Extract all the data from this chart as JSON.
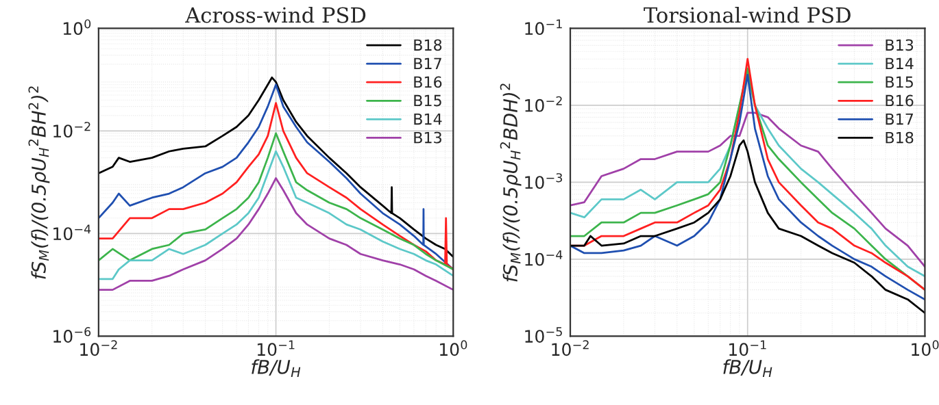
{
  "chart_data": [
    {
      "type": "line",
      "title": "Across-wind PSD",
      "xlabel": "fB/U$_{H}$",
      "ylabel": "fS$_{M}$(f)/(0.5ρU$_{H}$$^{2}$BH$^{2}$)$^{2}$",
      "log": "xy",
      "grid": true,
      "legend": "top right",
      "xlim": [
        0.01,
        1
      ],
      "ylim": [
        1e-06,
        1
      ],
      "xticks": [
        {
          "value": 0.01,
          "label": "10$^{−2}$"
        },
        {
          "value": 0.1,
          "label": "10$^{−1}$"
        },
        {
          "value": 1,
          "label": "10$^{0}$"
        }
      ],
      "yticks": [
        {
          "value": 1e-06,
          "label": "10$^{−6}$"
        },
        {
          "value": 0.0001,
          "label": "10$^{−4}$"
        },
        {
          "value": 0.01,
          "label": "10$^{−2}$"
        },
        {
          "value": 1,
          "label": "10$^{0}$"
        }
      ],
      "series": [
        {
          "name": "B18",
          "color": "#000000",
          "x": [
            0.01,
            0.012,
            0.013,
            0.015,
            0.02,
            0.025,
            0.03,
            0.04,
            0.05,
            0.06,
            0.07,
            0.08,
            0.09,
            0.095,
            0.1,
            0.11,
            0.13,
            0.15,
            0.2,
            0.25,
            0.3,
            0.4,
            0.448,
            0.45,
            0.452,
            0.5,
            0.6,
            0.7,
            0.8,
            0.9,
            1.0
          ],
          "values": [
            0.0015,
            0.002,
            0.003,
            0.0025,
            0.003,
            0.004,
            0.0045,
            0.005,
            0.008,
            0.012,
            0.02,
            0.04,
            0.08,
            0.11,
            0.09,
            0.04,
            0.015,
            0.008,
            0.003,
            0.0015,
            0.0008,
            0.00035,
            0.00025,
            0.0008,
            0.00025,
            0.0002,
            0.00012,
            8e-05,
            6e-05,
            5e-05,
            3.5e-05
          ]
        },
        {
          "name": "B17",
          "color": "#1f4fb0",
          "x": [
            0.01,
            0.012,
            0.013,
            0.015,
            0.02,
            0.025,
            0.03,
            0.04,
            0.05,
            0.06,
            0.07,
            0.08,
            0.09,
            0.1,
            0.11,
            0.13,
            0.15,
            0.2,
            0.25,
            0.3,
            0.4,
            0.5,
            0.6,
            0.678,
            0.68,
            0.682,
            0.8,
            1.0
          ],
          "values": [
            0.0002,
            0.0004,
            0.0006,
            0.00035,
            0.0005,
            0.0006,
            0.0008,
            0.0015,
            0.002,
            0.003,
            0.006,
            0.012,
            0.03,
            0.08,
            0.03,
            0.012,
            0.006,
            0.0025,
            0.0012,
            0.0006,
            0.00025,
            0.00015,
            9e-05,
            6e-05,
            0.0003,
            6e-05,
            4e-05,
            2e-05
          ]
        },
        {
          "name": "B16",
          "color": "#ff2020",
          "x": [
            0.01,
            0.012,
            0.015,
            0.02,
            0.025,
            0.03,
            0.04,
            0.05,
            0.06,
            0.07,
            0.08,
            0.09,
            0.1,
            0.11,
            0.13,
            0.15,
            0.2,
            0.25,
            0.3,
            0.4,
            0.5,
            0.6,
            0.7,
            0.8,
            0.9,
            0.91,
            0.92,
            1.0
          ],
          "values": [
            8e-05,
            8e-05,
            0.0002,
            0.0002,
            0.0003,
            0.0003,
            0.0004,
            0.0006,
            0.001,
            0.002,
            0.0035,
            0.008,
            0.035,
            0.01,
            0.003,
            0.0015,
            0.0008,
            0.0005,
            0.0003,
            0.00015,
            9e-05,
            6e-05,
            4.5e-05,
            3e-05,
            2.5e-05,
            0.0002,
            2.5e-05,
            2e-05
          ]
        },
        {
          "name": "B15",
          "color": "#3cb44b",
          "x": [
            0.01,
            0.012,
            0.015,
            0.02,
            0.025,
            0.03,
            0.04,
            0.05,
            0.06,
            0.07,
            0.08,
            0.09,
            0.1,
            0.11,
            0.13,
            0.15,
            0.2,
            0.25,
            0.3,
            0.4,
            0.5,
            0.6,
            0.7,
            0.8,
            1.0
          ],
          "values": [
            3e-05,
            5e-05,
            3e-05,
            5e-05,
            6e-05,
            0.0001,
            0.00012,
            0.0002,
            0.0003,
            0.0005,
            0.001,
            0.003,
            0.009,
            0.004,
            0.001,
            0.0007,
            0.0004,
            0.0003,
            0.0002,
            0.00012,
            8e-05,
            6e-05,
            4e-05,
            3e-05,
            2e-05
          ]
        },
        {
          "name": "B14",
          "color": "#5cc8c8",
          "x": [
            0.01,
            0.012,
            0.013,
            0.015,
            0.02,
            0.025,
            0.03,
            0.04,
            0.05,
            0.06,
            0.07,
            0.08,
            0.09,
            0.1,
            0.11,
            0.13,
            0.15,
            0.2,
            0.25,
            0.3,
            0.4,
            0.5,
            0.6,
            0.7,
            0.8,
            1.0
          ],
          "values": [
            1.3e-05,
            1.3e-05,
            2e-05,
            3e-05,
            3e-05,
            5e-05,
            4e-05,
            6e-05,
            0.0001,
            0.00015,
            0.00025,
            0.0005,
            0.0015,
            0.004,
            0.002,
            0.0005,
            0.0004,
            0.00025,
            0.00015,
            0.00012,
            7e-05,
            5e-05,
            4e-05,
            3e-05,
            2.5e-05,
            1.5e-05
          ]
        },
        {
          "name": "B13",
          "color": "#a040a8",
          "x": [
            0.01,
            0.012,
            0.015,
            0.02,
            0.025,
            0.03,
            0.04,
            0.05,
            0.06,
            0.07,
            0.08,
            0.09,
            0.1,
            0.11,
            0.13,
            0.15,
            0.2,
            0.25,
            0.3,
            0.4,
            0.5,
            0.6,
            0.7,
            0.8,
            1.0
          ],
          "values": [
            8e-06,
            8e-06,
            1.2e-05,
            1.2e-05,
            1.5e-05,
            2e-05,
            3e-05,
            5e-05,
            8e-05,
            0.00015,
            0.0003,
            0.0006,
            0.0012,
            0.0007,
            0.00025,
            0.00015,
            8e-05,
            6e-05,
            4e-05,
            3e-05,
            2.5e-05,
            2e-05,
            1.5e-05,
            1.2e-05,
            8e-06
          ]
        }
      ]
    },
    {
      "type": "line",
      "title": "Torsional-wind PSD",
      "xlabel": "fB/U$_{H}$",
      "ylabel": "fS$_{M}$(f)/(0.5ρU$_{H}$$^{2}$BDH)$^{2}$",
      "log": "xy",
      "grid": true,
      "legend": "top right",
      "xlim": [
        0.01,
        1
      ],
      "ylim": [
        1e-05,
        0.1
      ],
      "xticks": [
        {
          "value": 0.01,
          "label": "10$^{−2}$"
        },
        {
          "value": 0.1,
          "label": "10$^{−1}$"
        },
        {
          "value": 1,
          "label": "10$^{0}$"
        }
      ],
      "yticks": [
        {
          "value": 1e-05,
          "label": "10$^{−5}$"
        },
        {
          "value": 0.0001,
          "label": "10$^{−4}$"
        },
        {
          "value": 0.001,
          "label": "10$^{−3}$"
        },
        {
          "value": 0.01,
          "label": "10$^{−2}$"
        },
        {
          "value": 0.1,
          "label": "10$^{−1}$"
        }
      ],
      "series": [
        {
          "name": "B13",
          "color": "#a040a8",
          "x": [
            0.01,
            0.012,
            0.015,
            0.02,
            0.025,
            0.03,
            0.04,
            0.05,
            0.06,
            0.07,
            0.08,
            0.09,
            0.1,
            0.11,
            0.13,
            0.15,
            0.2,
            0.25,
            0.3,
            0.4,
            0.5,
            0.6,
            0.8,
            1.0
          ],
          "values": [
            0.0005,
            0.00055,
            0.0012,
            0.0015,
            0.002,
            0.002,
            0.0025,
            0.0025,
            0.0025,
            0.003,
            0.004,
            0.004,
            0.008,
            0.008,
            0.007,
            0.005,
            0.003,
            0.0025,
            0.0015,
            0.0007,
            0.0004,
            0.00025,
            0.00015,
            8e-05
          ]
        },
        {
          "name": "B14",
          "color": "#5cc8c8",
          "x": [
            0.01,
            0.012,
            0.015,
            0.02,
            0.025,
            0.03,
            0.04,
            0.05,
            0.06,
            0.07,
            0.08,
            0.09,
            0.1,
            0.11,
            0.13,
            0.15,
            0.2,
            0.25,
            0.3,
            0.4,
            0.5,
            0.6,
            0.8,
            1.0
          ],
          "values": [
            0.0004,
            0.00035,
            0.0006,
            0.0006,
            0.0008,
            0.0006,
            0.001,
            0.001,
            0.001,
            0.0015,
            0.003,
            0.01,
            0.025,
            0.01,
            0.005,
            0.003,
            0.0015,
            0.001,
            0.0007,
            0.0004,
            0.00025,
            0.00015,
            8e-05,
            6e-05
          ]
        },
        {
          "name": "B15",
          "color": "#3cb44b",
          "x": [
            0.01,
            0.012,
            0.015,
            0.02,
            0.025,
            0.03,
            0.04,
            0.05,
            0.06,
            0.07,
            0.08,
            0.09,
            0.1,
            0.11,
            0.13,
            0.15,
            0.2,
            0.25,
            0.3,
            0.4,
            0.5,
            0.6,
            0.8,
            1.0
          ],
          "values": [
            0.0002,
            0.0002,
            0.0003,
            0.0003,
            0.0004,
            0.0004,
            0.0005,
            0.0006,
            0.0007,
            0.001,
            0.003,
            0.01,
            0.03,
            0.01,
            0.003,
            0.002,
            0.001,
            0.0006,
            0.0004,
            0.00025,
            0.00015,
            0.0001,
            6e-05,
            4e-05
          ]
        },
        {
          "name": "B16",
          "color": "#ff2020",
          "x": [
            0.01,
            0.012,
            0.015,
            0.02,
            0.025,
            0.03,
            0.04,
            0.05,
            0.06,
            0.07,
            0.08,
            0.09,
            0.1,
            0.11,
            0.13,
            0.15,
            0.2,
            0.25,
            0.3,
            0.4,
            0.5,
            0.6,
            0.8,
            1.0
          ],
          "values": [
            0.00015,
            0.00015,
            0.0002,
            0.0002,
            0.00025,
            0.0003,
            0.0003,
            0.0004,
            0.0005,
            0.0008,
            0.002,
            0.008,
            0.04,
            0.01,
            0.002,
            0.001,
            0.0005,
            0.0003,
            0.00025,
            0.00015,
            0.00012,
            9e-05,
            6e-05,
            4e-05
          ]
        },
        {
          "name": "B17",
          "color": "#1f4fb0",
          "x": [
            0.01,
            0.012,
            0.015,
            0.02,
            0.025,
            0.03,
            0.04,
            0.05,
            0.06,
            0.07,
            0.08,
            0.09,
            0.1,
            0.11,
            0.13,
            0.15,
            0.2,
            0.25,
            0.3,
            0.4,
            0.5,
            0.6,
            0.8,
            1.0
          ],
          "values": [
            0.00015,
            0.00012,
            0.00012,
            0.00013,
            0.00015,
            0.0002,
            0.00015,
            0.0002,
            0.0003,
            0.0006,
            0.002,
            0.006,
            0.025,
            0.005,
            0.0012,
            0.0006,
            0.0003,
            0.0002,
            0.00015,
            0.0001,
            8e-05,
            6e-05,
            4e-05,
            3e-05
          ]
        },
        {
          "name": "B18",
          "color": "#000000",
          "x": [
            0.01,
            0.012,
            0.013,
            0.015,
            0.02,
            0.025,
            0.03,
            0.04,
            0.05,
            0.06,
            0.07,
            0.08,
            0.09,
            0.095,
            0.1,
            0.11,
            0.13,
            0.15,
            0.2,
            0.25,
            0.3,
            0.4,
            0.5,
            0.6,
            0.8,
            1.0
          ],
          "values": [
            0.00015,
            0.00015,
            0.0002,
            0.00015,
            0.00016,
            0.0002,
            0.0002,
            0.00025,
            0.0003,
            0.0004,
            0.0006,
            0.0012,
            0.003,
            0.0035,
            0.0025,
            0.001,
            0.0004,
            0.00025,
            0.0002,
            0.00015,
            0.00012,
            9e-05,
            6e-05,
            4e-05,
            3e-05,
            2e-05
          ]
        }
      ]
    }
  ]
}
